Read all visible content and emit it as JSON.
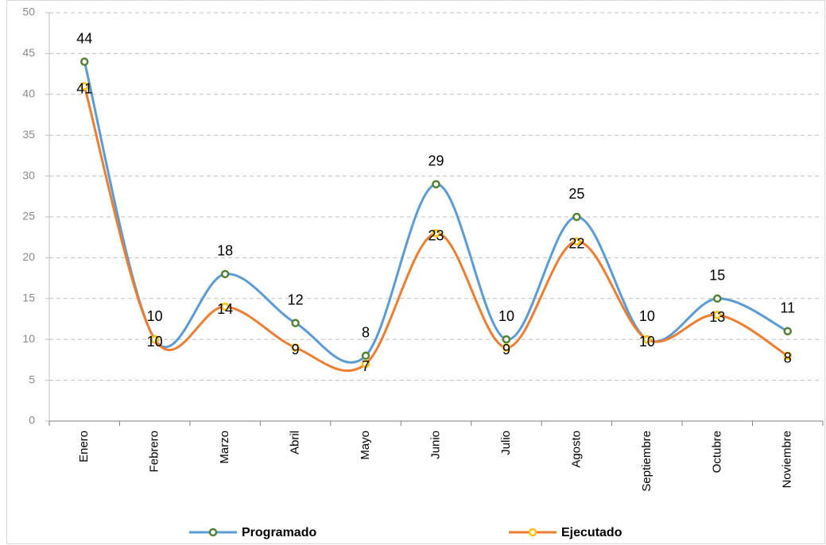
{
  "chart_data": {
    "type": "line",
    "categories": [
      "Enero",
      "Febrero",
      "Marzo",
      "Abril",
      "Mayo",
      "Junio",
      "Julio",
      "Agosto",
      "Septiembre",
      "Octubre",
      "Noviembre"
    ],
    "series": [
      {
        "name": "Programado",
        "color": "#5b9bd5",
        "marker_color": "#548235",
        "values": [
          44,
          10,
          18,
          12,
          8,
          29,
          10,
          25,
          10,
          15,
          11
        ]
      },
      {
        "name": "Ejecutado",
        "color": "#ed7d31",
        "marker_color": "#ffc000",
        "values": [
          41,
          10,
          14,
          9,
          7,
          23,
          9,
          22,
          10,
          13,
          8
        ]
      }
    ],
    "ylim": [
      0,
      50
    ],
    "yticks": [
      0,
      5,
      10,
      15,
      20,
      25,
      30,
      35,
      40,
      45,
      50
    ],
    "grid": true,
    "smooth": true,
    "legend": "bottom"
  }
}
